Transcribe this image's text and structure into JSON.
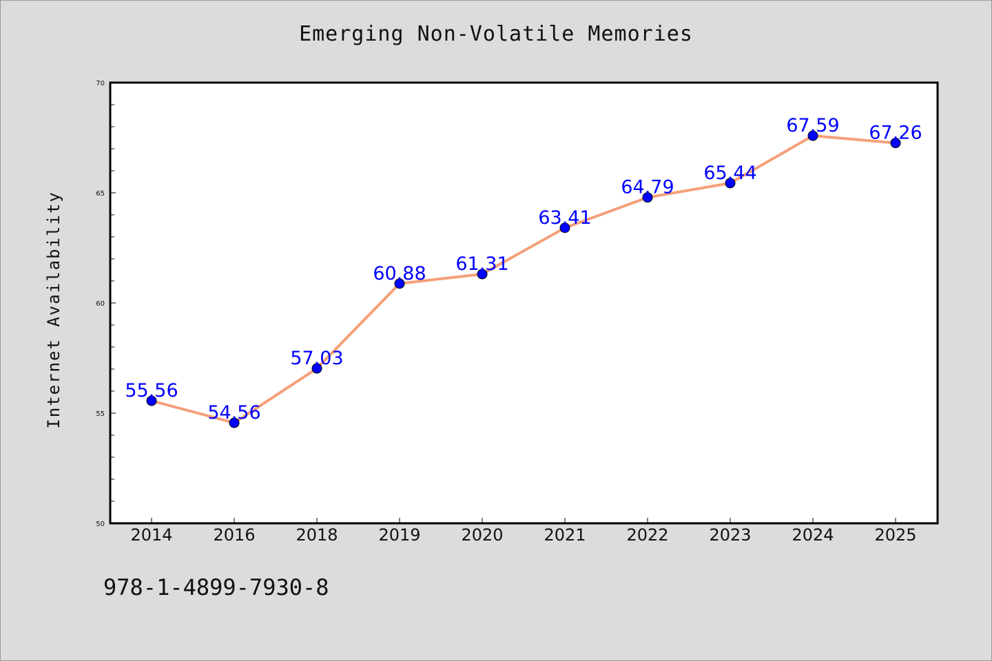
{
  "chart_data": {
    "type": "line",
    "title": "Emerging Non-Volatile Memories",
    "ylabel": "Internet Availability",
    "xlabel": "",
    "categories": [
      "2014",
      "2016",
      "2018",
      "2019",
      "2020",
      "2021",
      "2022",
      "2023",
      "2024",
      "2025"
    ],
    "series": [
      {
        "values": [
          55.56,
          54.56,
          57.03,
          60.88,
          61.31,
          63.41,
          64.79,
          65.44,
          67.59,
          67.26
        ],
        "labels": [
          "55.56",
          "54.56",
          "57.03",
          "60.88",
          "61.31",
          "63.41",
          "64.79",
          "65.44",
          "67.59",
          "67.26"
        ],
        "line_color": "#f4a07a",
        "marker_color": "#0000ff"
      }
    ],
    "ylim": [
      50,
      70
    ],
    "yticks": [
      "50",
      "55",
      "60",
      "65",
      "70"
    ],
    "grid": false,
    "legend": "none"
  },
  "footer_text": "978-1-4899-7930-8",
  "background_color": "#dcdcdc",
  "plot_background": "#ffffff"
}
